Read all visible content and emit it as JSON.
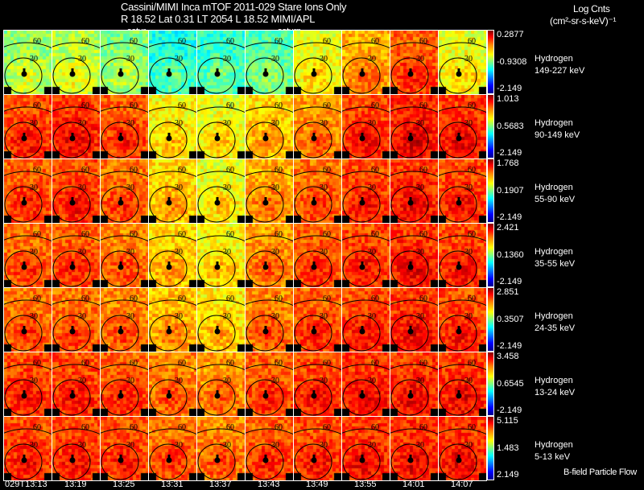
{
  "header": {
    "title": "Cassini/MIMI Inca mTOF  2011-029   Stare   Ions Only",
    "subtitle": "R        18.52 Lat 0.31 LT 2054 L          18.52  MIMI/APL",
    "units_line1": "Log Cnts",
    "units_line2": "(cm²-sr-s-keV)⁻¹",
    "saturn_labels": [
      "satur",
      "saturn"
    ]
  },
  "footer": {
    "legend_note": "B-field Particle Flow"
  },
  "chart_data": {
    "type": "heatmap",
    "title": "Cassini/MIMI Inca mTOF 2011-029 Stare Ions Only",
    "colorbar_label": "Log Cnts (cm²-sr-s-keV)⁻¹",
    "contour_labels": [
      "60",
      "30"
    ],
    "times": [
      "029T13:13",
      "13:19",
      "13:25",
      "13:31",
      "13:37",
      "13:43",
      "13:49",
      "13:55",
      "14:01",
      "14:07"
    ],
    "rows": [
      {
        "species": "Hydrogen",
        "energy": "149-227 keV",
        "cmax": "0.2877",
        "cmid": "-0.9308",
        "cmin": "-2.149",
        "level": [
          0.52,
          0.55,
          0.5,
          0.4,
          0.42,
          0.45,
          0.6,
          0.7,
          0.78,
          0.6
        ]
      },
      {
        "species": "Hydrogen",
        "energy": "90-149 keV",
        "cmax": "1.013",
        "cmid": "0.5683",
        "cmin": "-2.149",
        "level": [
          0.8,
          0.82,
          0.78,
          0.62,
          0.6,
          0.66,
          0.72,
          0.8,
          0.84,
          0.82
        ]
      },
      {
        "species": "Hydrogen",
        "energy": "55-90 keV",
        "cmax": "1.768",
        "cmid": "0.1907",
        "cmin": "-2.149",
        "level": [
          0.78,
          0.8,
          0.76,
          0.66,
          0.6,
          0.7,
          0.76,
          0.8,
          0.82,
          0.8
        ]
      },
      {
        "species": "Hydrogen",
        "energy": "35-55 keV",
        "cmax": "2.421",
        "cmid": "0.1360",
        "cmin": "-2.149",
        "level": [
          0.76,
          0.78,
          0.74,
          0.66,
          0.62,
          0.72,
          0.78,
          0.8,
          0.82,
          0.8
        ]
      },
      {
        "species": "Hydrogen",
        "energy": "24-35 keV",
        "cmax": "2.851",
        "cmid": "0.3507",
        "cmin": "-2.149",
        "level": [
          0.76,
          0.76,
          0.74,
          0.68,
          0.64,
          0.74,
          0.78,
          0.8,
          0.82,
          0.8
        ]
      },
      {
        "species": "Hydrogen",
        "energy": "13-24 keV",
        "cmax": "3.458",
        "cmid": "0.6545",
        "cmin": "-2.149",
        "level": [
          0.8,
          0.8,
          0.78,
          0.74,
          0.72,
          0.78,
          0.8,
          0.82,
          0.82,
          0.82
        ]
      },
      {
        "species": "Hydrogen",
        "energy": "5-13 keV",
        "cmax": "5.115",
        "cmid": "1.483",
        "cmin": "2.149",
        "level": [
          0.8,
          0.8,
          0.79,
          0.76,
          0.74,
          0.78,
          0.8,
          0.82,
          0.82,
          0.82
        ]
      }
    ]
  }
}
